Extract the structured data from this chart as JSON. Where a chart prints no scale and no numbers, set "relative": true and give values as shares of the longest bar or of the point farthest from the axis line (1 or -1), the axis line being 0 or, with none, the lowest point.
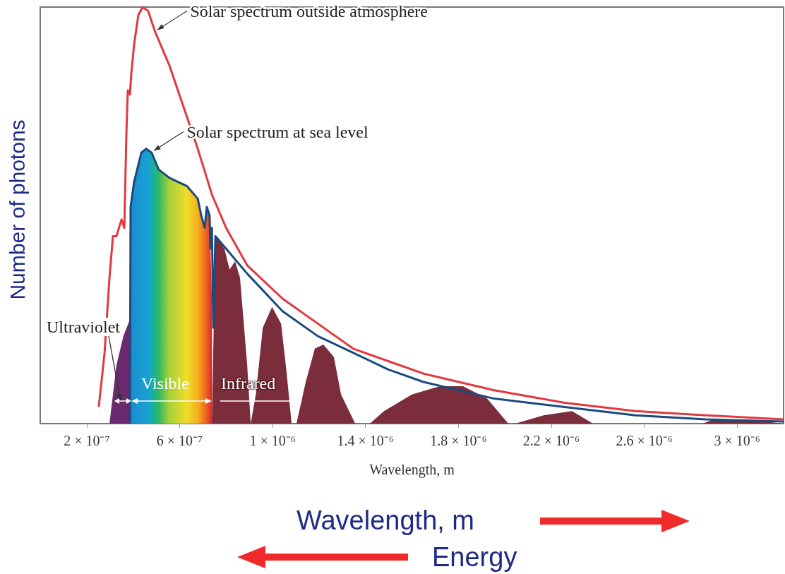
{
  "chart_data": {
    "type": "line",
    "relative": true,
    "marker": "none",
    "xlabel": "Wavelength, m",
    "ylabel": "Number of photons",
    "xlim": [
      0,
      3.2e-06
    ],
    "xticks": [
      {
        "value": 2e-07,
        "label": "2 × 10⁻⁷"
      },
      {
        "value": 6e-07,
        "label": "6 × 10⁻⁷"
      },
      {
        "value": 1e-06,
        "label": "1 × 10⁻⁶"
      },
      {
        "value": 1.4e-06,
        "label": "1.4 × 10⁻⁶"
      },
      {
        "value": 1.8e-06,
        "label": "1.8 × 10⁻⁶"
      },
      {
        "value": 2.2e-06,
        "label": "2.2 × 10⁻⁶"
      },
      {
        "value": 2.6e-06,
        "label": "2.6 × 10⁻⁶"
      },
      {
        "value": 3e-06,
        "label": "3 × 10⁻⁶"
      }
    ],
    "series": [
      {
        "type": "area",
        "color": "#6b2a6e",
        "x": [
          2.98e-07,
          3.28e-07,
          3.58e-07,
          3.86e-07,
          3.87e-07
        ],
        "values": [
          0.0,
          0.14,
          0.21,
          0.25,
          0.0
        ]
      },
      {
        "type": "area",
        "colors": [
          "#2a7fd0",
          "#1e88d0",
          "#1a90d0",
          "#1a9cd0",
          "#16a0d8",
          "#18aab0",
          "#30b860",
          "#a8d03a",
          "#f0dc28",
          "#f5b020",
          "#f39020",
          "#ee7020",
          "#ea5a22",
          "#e44426",
          "#dd3028",
          "#d82a28",
          "#d82a28"
        ],
        "x": [
          3.86e-07,
          3.89e-07,
          4.04e-07,
          4.35e-07,
          4.56e-07,
          4.8e-07,
          5.1e-07,
          5.56e-07,
          6.32e-07,
          6.78e-07,
          6.93e-07,
          7.08e-07,
          7.17e-07,
          7.29e-07,
          7.33e-07,
          7.39e-07,
          7.4e-07
        ],
        "values": [
          0.0,
          0.52,
          0.58,
          0.65,
          0.66,
          0.65,
          0.61,
          0.59,
          0.57,
          0.54,
          0.5,
          0.47,
          0.52,
          0.5,
          0.42,
          0.3,
          0.0
        ]
      },
      {
        "type": "area",
        "color": "#7b2d3b",
        "x": [
          7.39e-07,
          7.54e-07,
          7.93e-07,
          8.15e-07,
          8.39e-07,
          8.6e-07,
          8.91e-07,
          9.06e-07,
          9.28e-07,
          9.58e-07,
          9.98e-07,
          1.037e-06,
          1.061e-06,
          1.082e-06,
          1.103e-06,
          1.143e-06,
          1.182e-06,
          1.219e-06,
          1.264e-06,
          1.295e-06,
          1.356e-06,
          1.419e-06,
          1.48e-06,
          1.6e-06,
          1.72e-06,
          1.82e-06,
          1.924e-06,
          2.015e-06,
          2.045e-06,
          2.167e-06,
          2.289e-06,
          2.38e-06,
          2.85e-06,
          2.9e-06,
          3.04e-06,
          3.2e-06
        ],
        "values": [
          0.0,
          0.45,
          0.42,
          0.37,
          0.39,
          0.35,
          0.14,
          0.0,
          0.07,
          0.23,
          0.28,
          0.24,
          0.12,
          0.0,
          0.0,
          0.1,
          0.18,
          0.19,
          0.16,
          0.07,
          0.0,
          0.0,
          0.03,
          0.07,
          0.09,
          0.09,
          0.06,
          0.0,
          0.0,
          0.02,
          0.03,
          0.0,
          0.0,
          0.01,
          0.01,
          0.0
        ]
      },
      {
        "color": "#1a4a80",
        "x": [
          3.86e-07,
          3.89e-07,
          4.04e-07,
          4.35e-07,
          4.56e-07,
          4.8e-07,
          5.1e-07,
          5.56e-07,
          6.32e-07,
          6.78e-07,
          6.93e-07,
          7.08e-07,
          7.17e-07,
          7.29e-07,
          7.33e-07,
          7.39e-07,
          7.45e-07,
          7.54e-07,
          8e-07,
          8.91e-07,
          1.043e-06,
          1.195e-06,
          1.347e-06,
          1.498e-06,
          1.65e-06,
          1.954e-06,
          2.258e-06,
          2.562e-06,
          2.866e-06,
          3.2e-06
        ],
        "values": [
          0.0,
          0.52,
          0.58,
          0.65,
          0.66,
          0.65,
          0.61,
          0.59,
          0.57,
          0.54,
          0.5,
          0.47,
          0.52,
          0.5,
          0.42,
          0.47,
          0.23,
          0.45,
          0.42,
          0.36,
          0.27,
          0.21,
          0.17,
          0.13,
          0.1,
          0.06,
          0.04,
          0.02,
          0.01,
          0.005
        ]
      },
      {
        "color": "#e0393e",
        "x": [
          2.52e-07,
          2.77e-07,
          2.98e-07,
          3.13e-07,
          3.28e-07,
          3.5e-07,
          3.62e-07,
          3.71e-07,
          3.77e-07,
          3.86e-07,
          3.92e-07,
          4.04e-07,
          4.22e-07,
          4.41e-07,
          4.65e-07,
          4.95e-07,
          5.56e-07,
          6.17e-07,
          6.78e-07,
          7.39e-07,
          8e-07,
          8.91e-07,
          1.043e-06,
          1.195e-06,
          1.347e-06,
          1.498e-06,
          1.65e-06,
          1.954e-06,
          2.258e-06,
          2.562e-06,
          2.866e-06,
          3.2e-06
        ],
        "values": [
          0.04,
          0.17,
          0.35,
          0.45,
          0.45,
          0.49,
          0.47,
          0.7,
          0.8,
          0.79,
          0.84,
          0.91,
          0.98,
          1.0,
          0.99,
          0.94,
          0.86,
          0.76,
          0.66,
          0.55,
          0.47,
          0.38,
          0.3,
          0.24,
          0.18,
          0.15,
          0.12,
          0.08,
          0.05,
          0.03,
          0.02,
          0.01
        ]
      }
    ],
    "annotations": [
      {
        "text": "Solar spectrum outside atmosphere",
        "x": 4.95e-07,
        "y": 0.94
      },
      {
        "text": "Solar spectrum at sea level",
        "x": 4.8e-07,
        "y": 0.65
      },
      "Ultraviolet",
      "Visible",
      "Infrared",
      "Wavelength, m",
      "Energy"
    ]
  }
}
